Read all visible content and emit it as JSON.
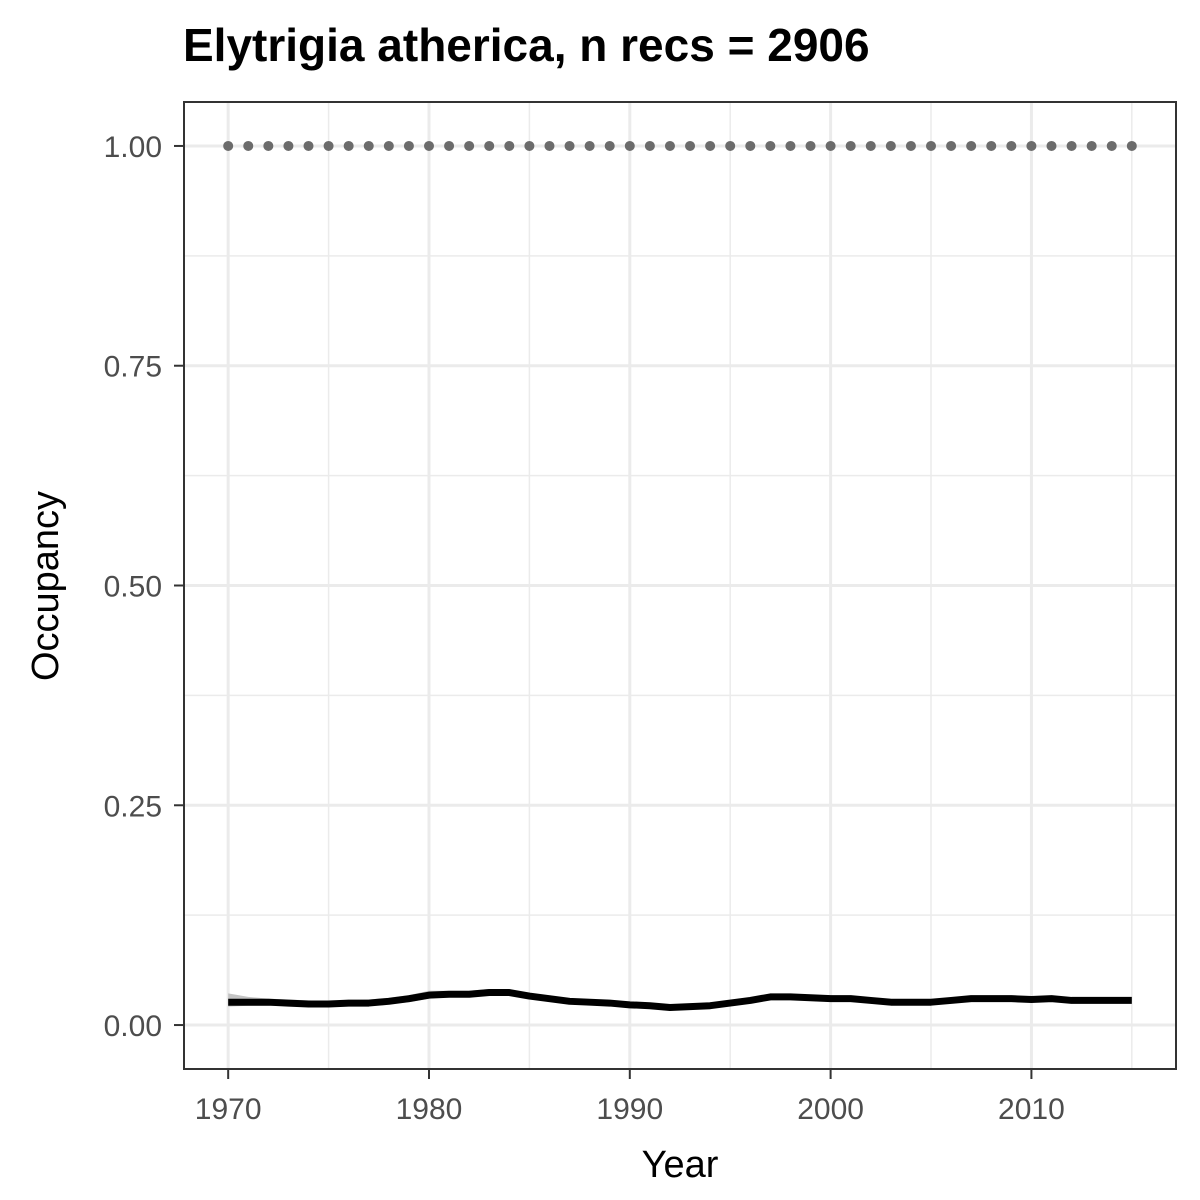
{
  "chart_data": {
    "type": "line",
    "title": "Elytrigia atherica, n recs = 2906",
    "xlabel": "Year",
    "ylabel": "Occupancy",
    "xlim": [
      1967.8,
      2017.2
    ],
    "ylim": [
      -0.05,
      1.05
    ],
    "x_ticks": [
      1970,
      1980,
      1990,
      2000,
      2010
    ],
    "y_ticks": [
      0.0,
      0.25,
      0.5,
      0.75,
      1.0
    ],
    "y_tick_labels": [
      "0.00",
      "0.25",
      "0.50",
      "0.75",
      "1.00"
    ],
    "grid": true,
    "legend": "none",
    "series": [
      {
        "style": "line",
        "color": "#000000",
        "band_color": "#bebebe",
        "x": [
          1970,
          1971,
          1972,
          1973,
          1974,
          1975,
          1976,
          1977,
          1978,
          1979,
          1980,
          1981,
          1982,
          1983,
          1984,
          1985,
          1986,
          1987,
          1988,
          1989,
          1990,
          1991,
          1992,
          1993,
          1994,
          1995,
          1996,
          1997,
          1998,
          1999,
          2000,
          2001,
          2002,
          2003,
          2004,
          2005,
          2006,
          2007,
          2008,
          2009,
          2010,
          2011,
          2012,
          2013,
          2014,
          2015
        ],
        "y": [
          0.026,
          0.026,
          0.026,
          0.025,
          0.024,
          0.024,
          0.025,
          0.025,
          0.027,
          0.03,
          0.034,
          0.035,
          0.035,
          0.037,
          0.037,
          0.033,
          0.03,
          0.027,
          0.026,
          0.025,
          0.023,
          0.022,
          0.02,
          0.021,
          0.022,
          0.025,
          0.028,
          0.032,
          0.032,
          0.031,
          0.03,
          0.03,
          0.028,
          0.026,
          0.026,
          0.026,
          0.028,
          0.03,
          0.03,
          0.03,
          0.029,
          0.03,
          0.028,
          0.028,
          0.028,
          0.028
        ],
        "lower": [
          0.021,
          0.022,
          0.022,
          0.022,
          0.022,
          0.022,
          0.022,
          0.022,
          0.024,
          0.026,
          0.03,
          0.032,
          0.032,
          0.034,
          0.034,
          0.031,
          0.028,
          0.025,
          0.024,
          0.023,
          0.021,
          0.02,
          0.019,
          0.02,
          0.021,
          0.023,
          0.026,
          0.03,
          0.03,
          0.029,
          0.028,
          0.028,
          0.026,
          0.024,
          0.024,
          0.025,
          0.027,
          0.029,
          0.029,
          0.029,
          0.028,
          0.029,
          0.027,
          0.027,
          0.027,
          0.027
        ],
        "upper": [
          0.036,
          0.032,
          0.03,
          0.029,
          0.028,
          0.027,
          0.028,
          0.029,
          0.031,
          0.034,
          0.039,
          0.039,
          0.039,
          0.041,
          0.041,
          0.036,
          0.033,
          0.029,
          0.028,
          0.027,
          0.025,
          0.024,
          0.022,
          0.023,
          0.024,
          0.027,
          0.03,
          0.034,
          0.034,
          0.033,
          0.032,
          0.032,
          0.03,
          0.028,
          0.028,
          0.028,
          0.03,
          0.032,
          0.032,
          0.032,
          0.031,
          0.032,
          0.03,
          0.03,
          0.03,
          0.03
        ]
      },
      {
        "style": "dotted",
        "color": "#6b6b6b",
        "x": [
          1970,
          1971,
          1972,
          1973,
          1974,
          1975,
          1976,
          1977,
          1978,
          1979,
          1980,
          1981,
          1982,
          1983,
          1984,
          1985,
          1986,
          1987,
          1988,
          1989,
          1990,
          1991,
          1992,
          1993,
          1994,
          1995,
          1996,
          1997,
          1998,
          1999,
          2000,
          2001,
          2002,
          2003,
          2004,
          2005,
          2006,
          2007,
          2008,
          2009,
          2010,
          2011,
          2012,
          2013,
          2014,
          2015
        ],
        "y": [
          1,
          1,
          1,
          1,
          1,
          1,
          1,
          1,
          1,
          1,
          1,
          1,
          1,
          1,
          1,
          1,
          1,
          1,
          1,
          1,
          1,
          1,
          1,
          1,
          1,
          1,
          1,
          1,
          1,
          1,
          1,
          1,
          1,
          1,
          1,
          1,
          1,
          1,
          1,
          1,
          1,
          1,
          1,
          1,
          1,
          1
        ]
      }
    ]
  }
}
